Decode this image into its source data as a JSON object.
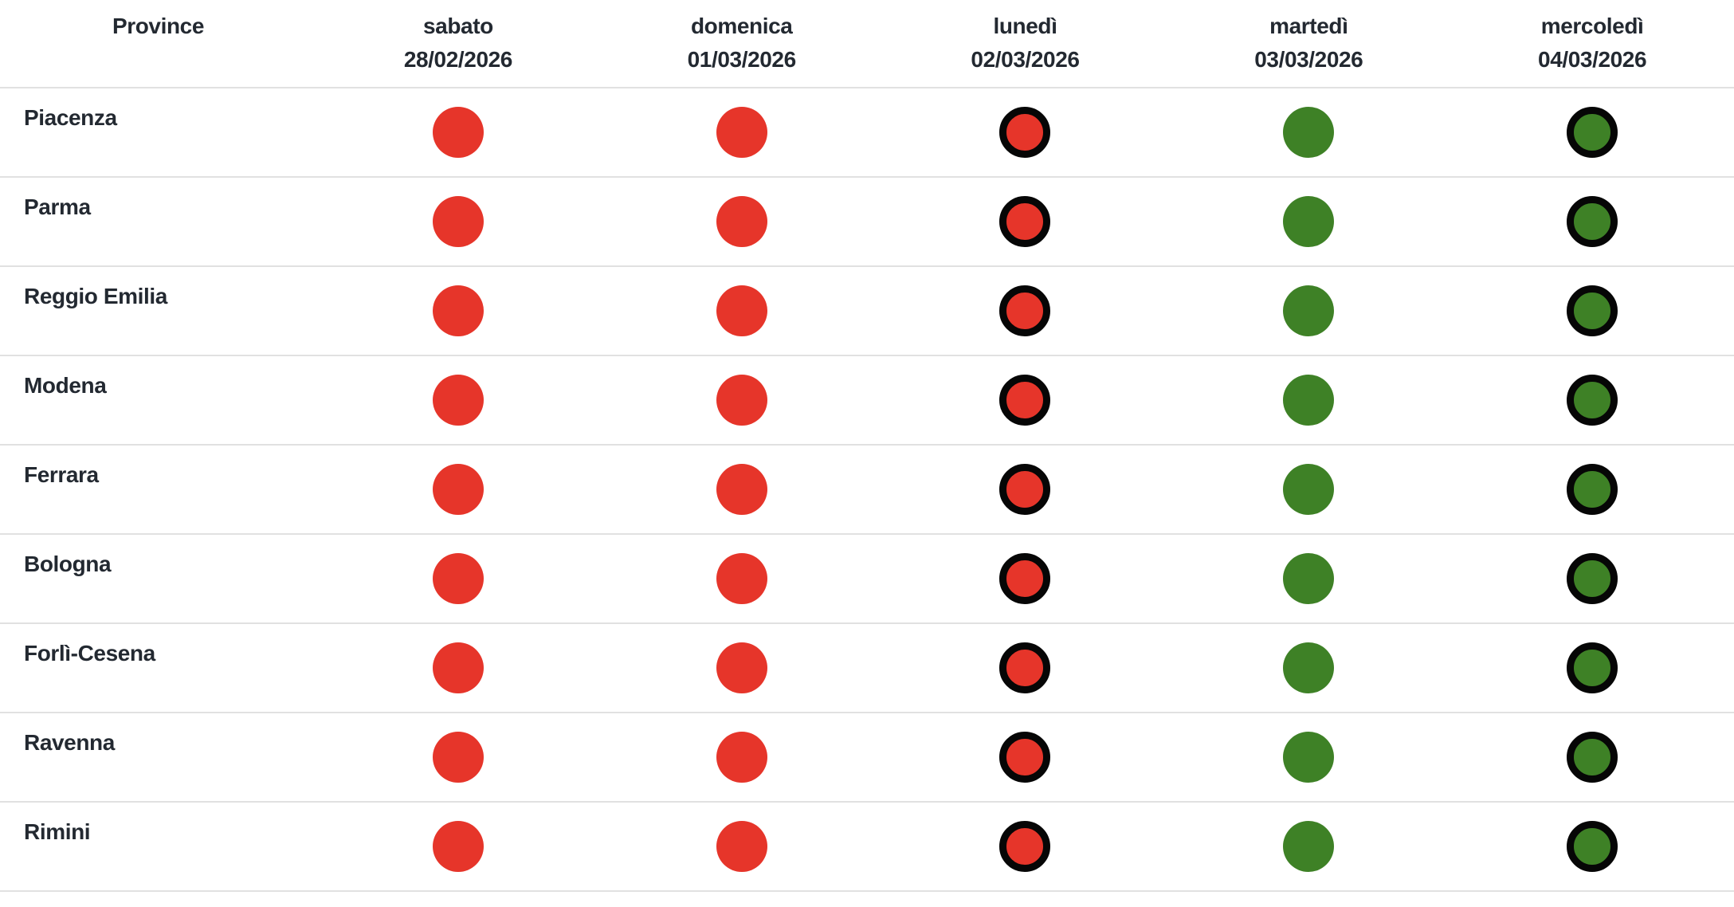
{
  "colors": {
    "alert_red": "#e6352a",
    "ok_green": "#3e8126",
    "dot_outline": "#060606",
    "divider": "#e1e1e1",
    "text": "#232931"
  },
  "table": {
    "province_header": "Province",
    "columns": [
      {
        "day": "sabato",
        "date": "28/02/2026"
      },
      {
        "day": "domenica",
        "date": "01/03/2026"
      },
      {
        "day": "lunedì",
        "date": "02/03/2026"
      },
      {
        "day": "martedì",
        "date": "03/03/2026"
      },
      {
        "day": "mercoledì",
        "date": "04/03/2026"
      }
    ],
    "rows": [
      {
        "province": "Piacenza",
        "statuses": [
          "red",
          "red",
          "red-outlined",
          "green",
          "green-outlined"
        ]
      },
      {
        "province": "Parma",
        "statuses": [
          "red",
          "red",
          "red-outlined",
          "green",
          "green-outlined"
        ]
      },
      {
        "province": "Reggio Emilia",
        "statuses": [
          "red",
          "red",
          "red-outlined",
          "green",
          "green-outlined"
        ]
      },
      {
        "province": "Modena",
        "statuses": [
          "red",
          "red",
          "red-outlined",
          "green",
          "green-outlined"
        ]
      },
      {
        "province": "Ferrara",
        "statuses": [
          "red",
          "red",
          "red-outlined",
          "green",
          "green-outlined"
        ]
      },
      {
        "province": "Bologna",
        "statuses": [
          "red",
          "red",
          "red-outlined",
          "green",
          "green-outlined"
        ]
      },
      {
        "province": "Forlì-Cesena",
        "statuses": [
          "red",
          "red",
          "red-outlined",
          "green",
          "green-outlined"
        ]
      },
      {
        "province": "Ravenna",
        "statuses": [
          "red",
          "red",
          "red-outlined",
          "green",
          "green-outlined"
        ]
      },
      {
        "province": "Rimini",
        "statuses": [
          "red",
          "red",
          "red-outlined",
          "green",
          "green-outlined"
        ]
      }
    ]
  }
}
